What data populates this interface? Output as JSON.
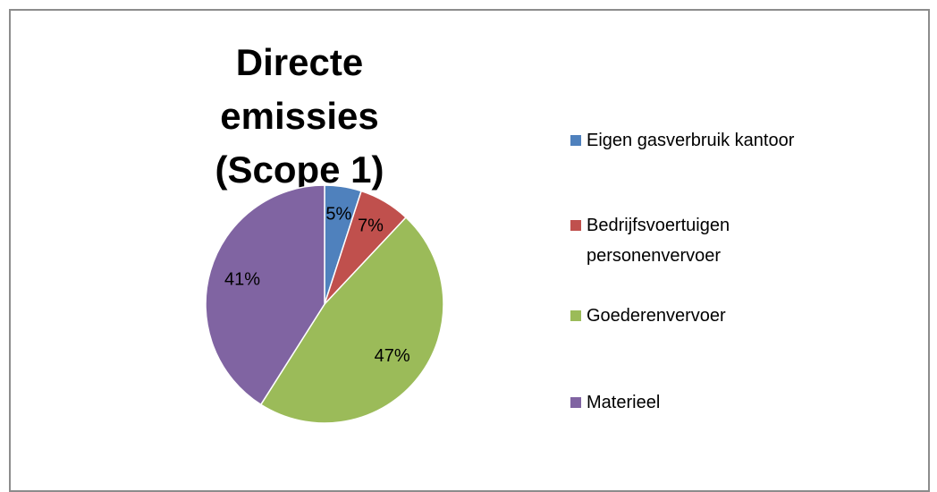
{
  "chart_data": {
    "type": "pie",
    "title": "Directe emissies (Scope 1)",
    "categories": [
      "Eigen gasverbruik kantoor",
      "Bedrijfsvoertuigen personenvervoer",
      "Goederenvervoer",
      "Materieel"
    ],
    "values": [
      5,
      7,
      47,
      41
    ],
    "value_labels": [
      "5%",
      "7%",
      "47%",
      "41%"
    ],
    "colors": [
      "#4f81bd",
      "#c0504d",
      "#9bbb59",
      "#8064a2"
    ],
    "legend": "right"
  }
}
